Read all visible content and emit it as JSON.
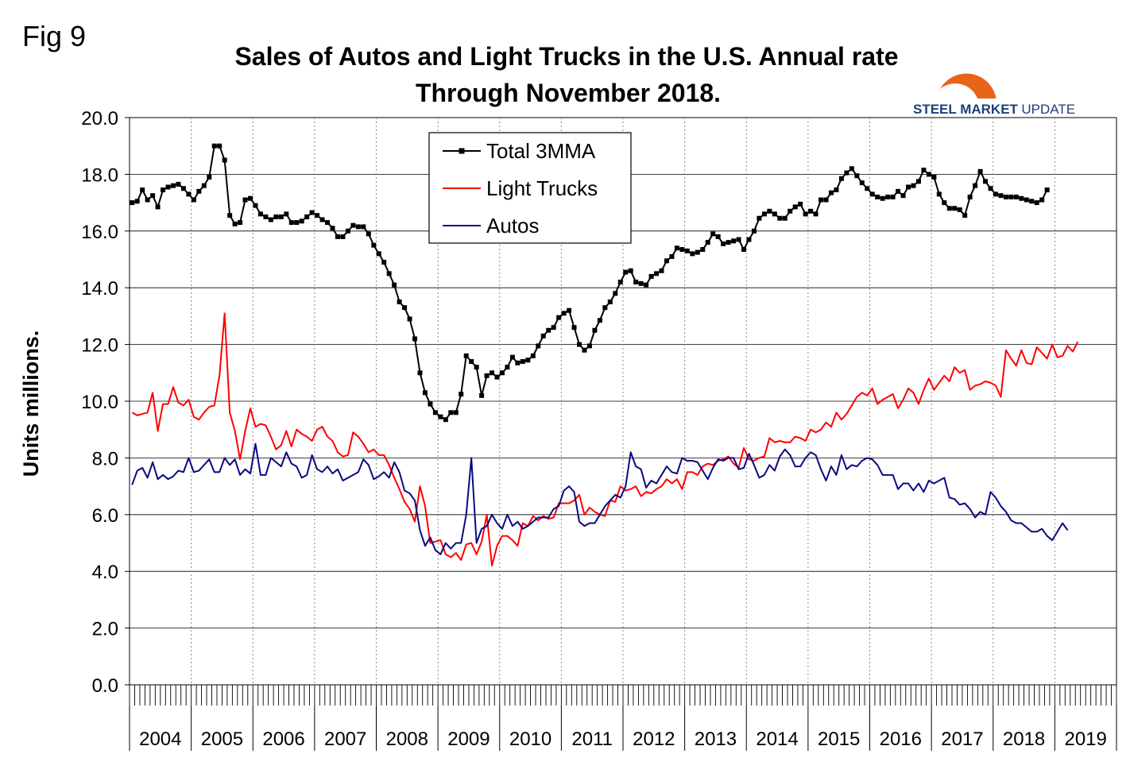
{
  "figure_label": "Fig 9",
  "logo": {
    "bold": "STEEL MARKET",
    "light": "UPDATE",
    "color": "#1f3f7a",
    "accent": "#e8641b"
  },
  "chart_data": {
    "type": "line",
    "title": [
      "Sales of Autos and Light Trucks in the U.S. Annual rate",
      "Through November 2018."
    ],
    "ylabel": "Units millions.",
    "xlabel": "",
    "ylim": [
      0,
      20
    ],
    "yticks": [
      "0.0",
      "2.0",
      "4.0",
      "6.0",
      "8.0",
      "10.0",
      "12.0",
      "14.0",
      "16.0",
      "18.0",
      "20.0"
    ],
    "year_labels": [
      "2004",
      "2005",
      "2006",
      "2007",
      "2008",
      "2009",
      "2010",
      "2011",
      "2012",
      "2013",
      "2014",
      "2015",
      "2016",
      "2017",
      "2018",
      "2019"
    ],
    "x_start": "2004-01",
    "x_end_exclusive": "2020-01",
    "grid": {
      "horizontal": true,
      "vertical_year_dashed": true
    },
    "legend_position": "top-center",
    "series": [
      {
        "name": "Total 3MMA",
        "color": "#000000",
        "marker": "square",
        "start": "2004-01",
        "values": [
          17.0,
          17.05,
          17.45,
          17.1,
          17.25,
          16.85,
          17.45,
          17.55,
          17.6,
          17.65,
          17.5,
          17.3,
          17.1,
          17.4,
          17.6,
          17.9,
          19.0,
          19.0,
          18.5,
          16.55,
          16.25,
          16.3,
          17.1,
          17.15,
          16.9,
          16.6,
          16.5,
          16.4,
          16.5,
          16.5,
          16.6,
          16.3,
          16.3,
          16.35,
          16.5,
          16.65,
          16.55,
          16.4,
          16.3,
          16.1,
          15.8,
          15.8,
          16.0,
          16.2,
          16.15,
          16.15,
          15.9,
          15.5,
          15.2,
          14.9,
          14.5,
          14.1,
          13.5,
          13.3,
          12.9,
          12.2,
          11.0,
          10.3,
          9.9,
          9.6,
          9.45,
          9.35,
          9.6,
          9.6,
          10.25,
          11.6,
          11.4,
          11.2,
          10.2,
          10.9,
          11.0,
          10.85,
          11.0,
          11.2,
          11.55,
          11.35,
          11.4,
          11.45,
          11.6,
          11.95,
          12.3,
          12.5,
          12.6,
          12.95,
          13.1,
          13.2,
          12.6,
          12.0,
          11.8,
          11.95,
          12.5,
          12.85,
          13.3,
          13.5,
          13.8,
          14.2,
          14.55,
          14.6,
          14.2,
          14.15,
          14.1,
          14.4,
          14.5,
          14.6,
          14.95,
          15.1,
          15.4,
          15.35,
          15.3,
          15.2,
          15.25,
          15.35,
          15.6,
          15.9,
          15.8,
          15.55,
          15.6,
          15.65,
          15.7,
          15.35,
          15.7,
          16.0,
          16.45,
          16.6,
          16.7,
          16.6,
          16.45,
          16.45,
          16.7,
          16.85,
          16.95,
          16.6,
          16.7,
          16.6,
          17.1,
          17.1,
          17.35,
          17.45,
          17.85,
          18.05,
          18.2,
          17.95,
          17.7,
          17.5,
          17.3,
          17.2,
          17.15,
          17.2,
          17.2,
          17.4,
          17.25,
          17.55,
          17.6,
          17.75,
          18.15,
          18.0,
          17.9,
          17.3,
          17.0,
          16.8,
          16.8,
          16.75,
          16.55,
          17.2,
          17.6,
          18.1,
          17.75,
          17.5,
          17.3,
          17.25,
          17.2,
          17.2,
          17.2,
          17.15,
          17.1,
          17.05,
          17.0,
          17.1,
          17.45
        ]
      },
      {
        "name": "Light Trucks",
        "color": "#ff0000",
        "marker": "none",
        "start": "2004-01",
        "values": [
          9.6,
          9.5,
          9.55,
          9.6,
          10.3,
          8.95,
          9.9,
          9.9,
          10.5,
          9.95,
          9.85,
          10.05,
          9.45,
          9.35,
          9.6,
          9.8,
          9.85,
          10.9,
          13.1,
          9.6,
          8.95,
          7.95,
          8.95,
          9.75,
          9.1,
          9.2,
          9.15,
          8.75,
          8.3,
          8.45,
          8.95,
          8.4,
          9.0,
          8.85,
          8.75,
          8.6,
          9.0,
          9.1,
          8.75,
          8.6,
          8.2,
          8.05,
          8.1,
          8.9,
          8.75,
          8.5,
          8.2,
          8.3,
          8.1,
          8.1,
          7.75,
          7.3,
          6.9,
          6.45,
          6.2,
          5.75,
          7.0,
          6.3,
          5.0,
          5.05,
          5.1,
          4.6,
          4.5,
          4.65,
          4.4,
          4.95,
          5.0,
          4.6,
          5.05,
          6.0,
          4.2,
          4.9,
          5.25,
          5.25,
          5.1,
          4.9,
          5.7,
          5.6,
          5.95,
          5.8,
          5.95,
          5.85,
          5.9,
          6.4,
          6.4,
          6.4,
          6.5,
          6.7,
          6.0,
          6.25,
          6.1,
          6.0,
          5.95,
          6.5,
          6.45,
          7.0,
          6.85,
          6.9,
          7.0,
          6.65,
          6.8,
          6.75,
          6.9,
          7.0,
          7.25,
          7.1,
          7.25,
          6.9,
          7.5,
          7.5,
          7.4,
          7.7,
          7.8,
          7.75,
          7.9,
          7.95,
          8.05,
          7.8,
          7.65,
          8.35,
          7.95,
          7.9,
          8.0,
          8.05,
          8.7,
          8.55,
          8.6,
          8.55,
          8.55,
          8.75,
          8.7,
          8.6,
          9.0,
          8.9,
          9.0,
          9.25,
          9.1,
          9.6,
          9.35,
          9.55,
          9.85,
          10.15,
          10.3,
          10.2,
          10.45,
          9.9,
          10.05,
          10.15,
          10.25,
          9.75,
          10.05,
          10.45,
          10.3,
          9.9,
          10.4,
          10.8,
          10.4,
          10.65,
          10.9,
          10.7,
          11.2,
          11.0,
          11.1,
          10.4,
          10.55,
          10.6,
          10.7,
          10.65,
          10.55,
          10.15,
          11.8,
          11.5,
          11.25,
          11.8,
          11.35,
          11.3,
          11.9,
          11.7,
          11.5,
          12.0,
          11.55,
          11.6,
          11.95,
          11.75,
          12.1
        ]
      },
      {
        "name": "Autos",
        "color": "#0a0a80",
        "marker": "none",
        "start": "2004-01",
        "values": [
          7.05,
          7.55,
          7.65,
          7.3,
          7.85,
          7.25,
          7.4,
          7.25,
          7.35,
          7.55,
          7.5,
          8.0,
          7.5,
          7.55,
          7.75,
          7.95,
          7.5,
          7.5,
          8.0,
          7.75,
          7.95,
          7.4,
          7.6,
          7.45,
          8.5,
          7.4,
          7.4,
          8.0,
          7.85,
          7.7,
          8.2,
          7.8,
          7.7,
          7.3,
          7.4,
          8.1,
          7.6,
          7.5,
          7.7,
          7.45,
          7.6,
          7.2,
          7.3,
          7.4,
          7.5,
          7.95,
          7.75,
          7.25,
          7.35,
          7.5,
          7.3,
          7.85,
          7.5,
          6.85,
          6.75,
          6.5,
          5.45,
          4.9,
          5.2,
          4.75,
          4.6,
          5.0,
          4.8,
          5.0,
          5.0,
          6.0,
          8.0,
          5.0,
          5.5,
          5.6,
          6.0,
          5.7,
          5.5,
          6.0,
          5.6,
          5.75,
          5.5,
          5.6,
          5.75,
          5.9,
          5.9,
          5.9,
          6.2,
          6.3,
          6.85,
          7.0,
          6.8,
          5.75,
          5.6,
          5.7,
          5.7,
          6.0,
          6.3,
          6.5,
          6.7,
          6.6,
          7.0,
          8.2,
          7.7,
          7.6,
          6.95,
          7.2,
          7.1,
          7.4,
          7.7,
          7.5,
          7.45,
          8.0,
          7.9,
          7.9,
          7.85,
          7.55,
          7.25,
          7.65,
          7.95,
          7.9,
          8.0,
          8.0,
          7.6,
          7.65,
          8.15,
          7.75,
          7.3,
          7.4,
          7.75,
          7.55,
          8.05,
          8.3,
          8.1,
          7.7,
          7.7,
          8.0,
          8.2,
          8.1,
          7.6,
          7.2,
          7.7,
          7.4,
          8.1,
          7.6,
          7.75,
          7.7,
          7.9,
          8.0,
          7.95,
          7.75,
          7.4,
          7.4,
          7.4,
          6.9,
          7.1,
          7.1,
          6.85,
          7.1,
          6.8,
          7.2,
          7.1,
          7.2,
          7.3,
          6.6,
          6.55,
          6.35,
          6.4,
          6.2,
          5.9,
          6.1,
          6.0,
          6.8,
          6.6,
          6.3,
          6.1,
          5.8,
          5.7,
          5.7,
          5.55,
          5.4,
          5.4,
          5.5,
          5.25,
          5.1,
          5.4,
          5.7,
          5.45
        ]
      }
    ]
  }
}
